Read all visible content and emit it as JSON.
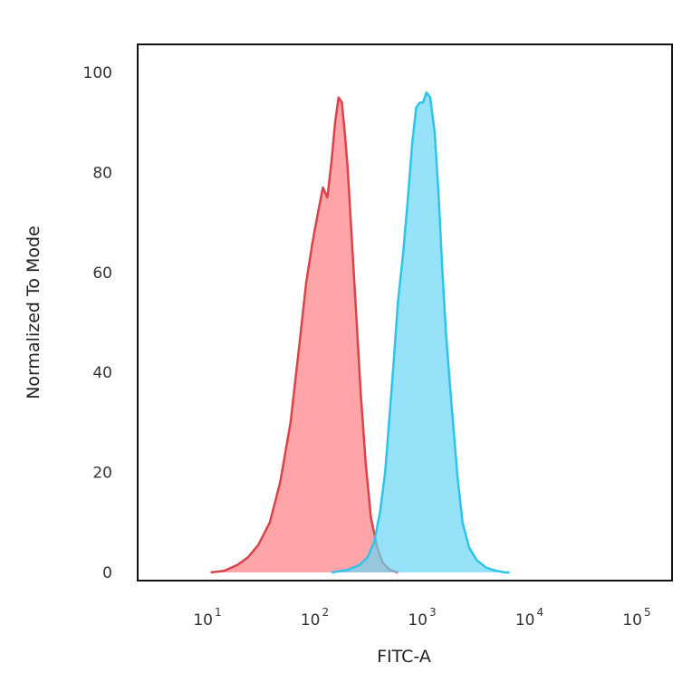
{
  "chart_data": {
    "type": "area",
    "title": "",
    "xlabel": "FITC-A",
    "ylabel": "Normalized To Mode",
    "xscale": "log",
    "xlim": [
      2,
      200000
    ],
    "ylim": [
      0,
      105
    ],
    "grid": false,
    "legend": "none",
    "x_ticks": [
      {
        "value": 10,
        "base": "10",
        "exp": "1"
      },
      {
        "value": 100,
        "base": "10",
        "exp": "2"
      },
      {
        "value": 1000,
        "base": "10",
        "exp": "3"
      },
      {
        "value": 10000,
        "base": "10",
        "exp": "4"
      },
      {
        "value": 100000,
        "base": "10",
        "exp": "5"
      }
    ],
    "y_ticks": [
      {
        "value": 0,
        "label": "0"
      },
      {
        "value": 20,
        "label": "20"
      },
      {
        "value": 40,
        "label": "40"
      },
      {
        "value": 60,
        "label": "60"
      },
      {
        "value": 80,
        "label": "80"
      },
      {
        "value": 100,
        "label": "100"
      }
    ],
    "series": [
      {
        "color_line": "#d9444a",
        "color_fill": "#ff7f84",
        "fill_opacity": 0.7,
        "x": [
          9,
          12,
          16,
          20,
          25,
          32,
          40,
          50,
          60,
          70,
          80,
          90,
          100,
          110,
          120,
          130,
          140,
          150,
          160,
          170,
          180,
          200,
          225,
          250,
          280,
          320,
          360,
          420,
          500
        ],
        "y": [
          0,
          0.3,
          1.5,
          3,
          5.5,
          10,
          18,
          30,
          45,
          58,
          66,
          72,
          77,
          75,
          82,
          90,
          95,
          94,
          88,
          81,
          72,
          55,
          36,
          22,
          11,
          5,
          2,
          0.5,
          0
        ]
      },
      {
        "color_line": "#2ec4ea",
        "color_fill": "#69d6f5",
        "fill_opacity": 0.7,
        "x": [
          120,
          170,
          220,
          260,
          300,
          340,
          380,
          420,
          460,
          500,
          560,
          620,
          680,
          740,
          800,
          860,
          920,
          1000,
          1100,
          1200,
          1300,
          1400,
          1600,
          1800,
          2000,
          2300,
          2700,
          3300,
          4000,
          5000,
          5500
        ],
        "y": [
          0,
          0.5,
          1.5,
          3,
          6,
          12,
          20,
          32,
          43,
          54,
          64,
          75,
          86,
          93,
          94,
          94,
          96,
          95,
          88,
          75,
          60,
          48,
          32,
          19,
          10,
          5,
          2.5,
          1,
          0.4,
          0,
          0
        ]
      }
    ]
  }
}
